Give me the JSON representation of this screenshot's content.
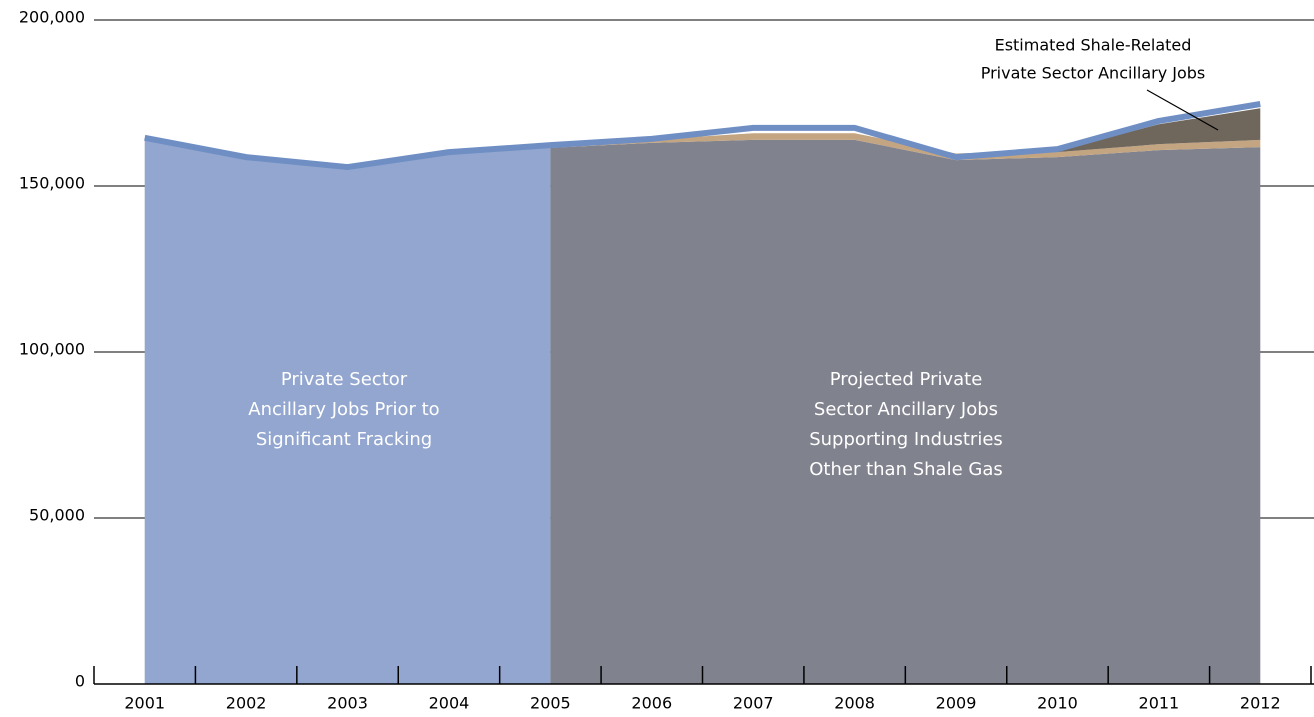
{
  "chart_data": {
    "type": "area",
    "categories": [
      "2001",
      "2002",
      "2003",
      "2004",
      "2005",
      "2006",
      "2007",
      "2008",
      "2009",
      "2010",
      "2011",
      "2012"
    ],
    "series": [
      {
        "name": [
          "Private Sector",
          "Ancillary Jobs Prior to",
          "Significant Fracking"
        ],
        "color": "#93a6cf",
        "values": [
          164500,
          158700,
          155700,
          160200,
          162300,
          null,
          null,
          null,
          null,
          null,
          null,
          null
        ]
      },
      {
        "name": [
          "Projected Private",
          "Sector Ancillary Jobs",
          "Supporting Industries",
          "Other than Shale Gas"
        ],
        "color": "#80828e",
        "stacked": true,
        "values": [
          null,
          null,
          null,
          null,
          161500,
          163000,
          163900,
          163900,
          157800,
          158700,
          160800,
          161700
        ]
      },
      {
        "color": "#c4a582",
        "stacked": true,
        "values": [
          null,
          null,
          null,
          null,
          500,
          1000,
          2000,
          2000,
          2000,
          1500,
          1800,
          2200
        ]
      },
      {
        "name": [
          "Estimated Shale-Related",
          "Private Sector Ancillary Jobs"
        ],
        "color": "#6f665c",
        "stacked": true,
        "values": [
          null,
          null,
          null,
          null,
          0,
          0,
          0,
          0,
          0,
          500,
          6000,
          9500
        ]
      },
      {
        "color": "#6f8fc4",
        "line": true,
        "values": [
          164500,
          158700,
          155700,
          160200,
          162300,
          164200,
          167500,
          167500,
          158700,
          161100,
          169600,
          174700
        ]
      }
    ],
    "ylim": [
      0,
      200000
    ],
    "yticks": [
      0,
      {
        "value": 50000,
        "label": "50,000"
      },
      {
        "value": 100000,
        "label": "100,000"
      },
      {
        "value": 150000,
        "label": "150,000"
      },
      {
        "value": 200000,
        "label": "200,000"
      }
    ],
    "grid": true
  }
}
